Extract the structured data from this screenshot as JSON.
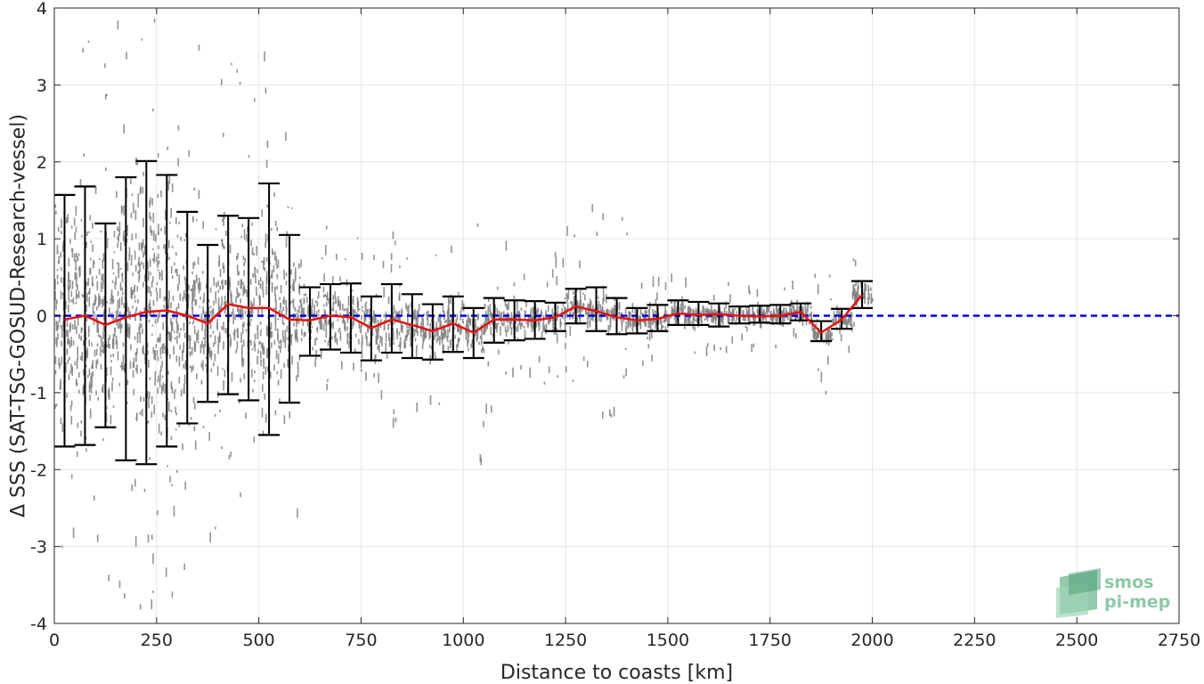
{
  "chart_data": {
    "type": "scatter",
    "title": "",
    "xlabel": "Distance to coasts [km]",
    "ylabel": "Δ SSS (SAT-TSG-GOSUD-Research-vessel)",
    "xlim": [
      0,
      2750
    ],
    "ylim": [
      -4,
      4
    ],
    "xticks": [
      0,
      250,
      500,
      750,
      1000,
      1250,
      1500,
      1750,
      2000,
      2250,
      2500,
      2750
    ],
    "yticks": [
      -4,
      -3,
      -2,
      -1,
      0,
      1,
      2,
      3,
      4
    ],
    "grid": true,
    "reference_line": {
      "y": 0,
      "color": "#0000dd",
      "style": "dashed"
    },
    "colors": {
      "scatter": "#808080",
      "mean": "#e81010",
      "errorbar": "#000000",
      "reference": "#0000dd"
    },
    "series": [
      {
        "type": "errorbar_mean",
        "x": [
          25,
          75,
          125,
          175,
          225,
          275,
          325,
          375,
          425,
          475,
          525,
          575,
          625,
          675,
          725,
          775,
          825,
          875,
          925,
          975,
          1025,
          1075,
          1125,
          1175,
          1225,
          1275,
          1325,
          1375,
          1425,
          1475,
          1525,
          1575,
          1625,
          1675,
          1725,
          1775,
          1825,
          1875,
          1925,
          1975
        ],
        "mean": [
          -0.05,
          0.0,
          -0.12,
          -0.02,
          0.05,
          0.07,
          0.0,
          -0.1,
          0.15,
          0.1,
          0.1,
          -0.05,
          -0.06,
          0.0,
          -0.02,
          -0.16,
          -0.05,
          -0.12,
          -0.2,
          -0.1,
          -0.22,
          -0.05,
          -0.05,
          -0.06,
          -0.02,
          0.12,
          0.06,
          -0.02,
          -0.06,
          -0.04,
          0.03,
          0.01,
          0.02,
          0.0,
          -0.01,
          0.0,
          0.05,
          -0.22,
          -0.05,
          0.27
        ],
        "lower": [
          -1.7,
          -1.68,
          -1.45,
          -1.88,
          -1.93,
          -1.7,
          -1.4,
          -1.12,
          -1.02,
          -1.1,
          -1.55,
          -1.13,
          -0.52,
          -0.44,
          -0.48,
          -0.58,
          -0.48,
          -0.55,
          -0.57,
          -0.47,
          -0.55,
          -0.35,
          -0.32,
          -0.3,
          -0.2,
          -0.1,
          -0.2,
          -0.24,
          -0.23,
          -0.2,
          -0.12,
          -0.12,
          -0.14,
          -0.1,
          -0.09,
          -0.1,
          -0.06,
          -0.33,
          -0.17,
          0.1
        ],
        "upper": [
          1.57,
          1.68,
          1.2,
          1.8,
          2.01,
          1.83,
          1.35,
          0.92,
          1.3,
          1.27,
          1.72,
          1.05,
          0.37,
          0.41,
          0.42,
          0.25,
          0.41,
          0.28,
          0.15,
          0.25,
          0.1,
          0.23,
          0.2,
          0.19,
          0.17,
          0.35,
          0.37,
          0.23,
          0.1,
          0.14,
          0.2,
          0.18,
          0.16,
          0.12,
          0.13,
          0.14,
          0.16,
          -0.07,
          0.09,
          0.45
        ]
      }
    ],
    "scatter_envelope": {
      "x": [
        25,
        75,
        125,
        175,
        225,
        275,
        325,
        375,
        425,
        475,
        525,
        575,
        625,
        675,
        725,
        775,
        825,
        875,
        925,
        975,
        1025,
        1075,
        1125,
        1175,
        1225,
        1275,
        1325,
        1375,
        1425,
        1475,
        1525,
        1575,
        1625,
        1675,
        1725,
        1775,
        1825,
        1875,
        1925,
        1975
      ],
      "core_halfwidth": [
        1.2,
        1.3,
        1.1,
        1.3,
        1.5,
        1.4,
        1.1,
        0.8,
        0.9,
        0.9,
        1.2,
        0.8,
        0.35,
        0.35,
        0.35,
        0.3,
        0.35,
        0.3,
        0.28,
        0.28,
        0.25,
        0.2,
        0.2,
        0.18,
        0.16,
        0.18,
        0.2,
        0.18,
        0.13,
        0.13,
        0.13,
        0.12,
        0.12,
        0.1,
        0.1,
        0.1,
        0.1,
        0.12,
        0.1,
        0.12
      ],
      "max_extent": [
        4,
        4,
        4,
        4,
        4,
        4,
        4,
        3.8,
        3.5,
        3.2,
        3.6,
        2.8,
        1.4,
        1.2,
        1.2,
        1.1,
        1.4,
        1.2,
        1.0,
        1.1,
        1.8,
        1.2,
        1.1,
        1.0,
        0.9,
        1.0,
        1.4,
        1.3,
        0.7,
        0.6,
        0.6,
        0.6,
        0.5,
        0.5,
        0.45,
        0.45,
        0.5,
        0.8,
        0.6,
        0.5
      ]
    }
  },
  "logo": {
    "line1": "smos",
    "line2": "pi-mep"
  }
}
